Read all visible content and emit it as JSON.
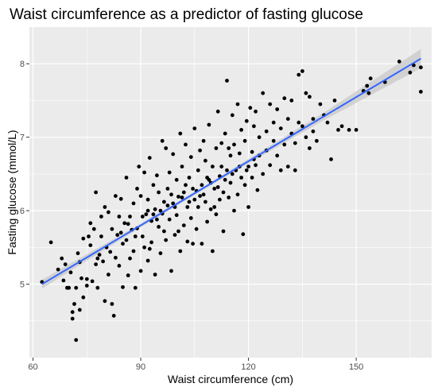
{
  "chart_data": {
    "type": "scatter",
    "title": "Waist circumference as a predictor of fasting glucose",
    "xlabel": "Waist circumference (cm)",
    "ylabel": "Fasting glucose (mmol/L)",
    "xlim": [
      59,
      171
    ],
    "ylim": [
      4.0,
      8.5
    ],
    "xticks": [
      60,
      90,
      120,
      150
    ],
    "yticks": [
      5,
      6,
      7,
      8
    ],
    "xtick_labels": [
      "60",
      "90",
      "120",
      "150"
    ],
    "ytick_labels": [
      "5",
      "6",
      "7",
      "8"
    ],
    "grid": true,
    "legend": "none",
    "background_color": "#ebebeb",
    "point_color": "#000000",
    "trend_color": "#3366ff",
    "band_color": "#cccccc",
    "trend": {
      "x": [
        62.5,
        168
      ],
      "y": [
        5.0,
        8.07
      ]
    },
    "band_half_width": {
      "x": [
        62.5,
        90,
        110,
        140,
        168
      ],
      "y": [
        0.06,
        0.025,
        0.022,
        0.05,
        0.13
      ]
    },
    "points": [
      [
        62.5,
        5.03
      ],
      [
        65.0,
        5.57
      ],
      [
        67.0,
        5.2
      ],
      [
        68.0,
        5.35
      ],
      [
        68.5,
        5.05
      ],
      [
        69.0,
        5.27
      ],
      [
        69.5,
        4.95
      ],
      [
        70.0,
        4.95
      ],
      [
        70.5,
        5.16
      ],
      [
        71.0,
        4.62
      ],
      [
        71.0,
        4.53
      ],
      [
        71.5,
        4.73
      ],
      [
        72.0,
        4.24
      ],
      [
        72.0,
        4.95
      ],
      [
        72.5,
        5.42
      ],
      [
        73.0,
        5.3
      ],
      [
        73.0,
        4.65
      ],
      [
        73.5,
        5.08
      ],
      [
        74.0,
        4.82
      ],
      [
        74.0,
        5.62
      ],
      [
        75.0,
        5.07
      ],
      [
        75.0,
        4.98
      ],
      [
        75.5,
        5.65
      ],
      [
        76.0,
        5.83
      ],
      [
        76.0,
        5.53
      ],
      [
        76.5,
        5.04
      ],
      [
        77.0,
        5.75
      ],
      [
        77.5,
        6.25
      ],
      [
        77.5,
        5.27
      ],
      [
        78.0,
        4.95
      ],
      [
        78.0,
        5.35
      ],
      [
        78.5,
        5.4
      ],
      [
        79.0,
        5.92
      ],
      [
        79.0,
        5.65
      ],
      [
        79.5,
        5.31
      ],
      [
        80.0,
        4.77
      ],
      [
        80.0,
        6.05
      ],
      [
        80.5,
        5.5
      ],
      [
        81.0,
        5.13
      ],
      [
        81.0,
        5.98
      ],
      [
        81.5,
        5.44
      ],
      [
        82.0,
        5.75
      ],
      [
        82.0,
        4.73
      ],
      [
        82.5,
        4.57
      ],
      [
        83.0,
        5.36
      ],
      [
        83.0,
        6.2
      ],
      [
        83.5,
        5.67
      ],
      [
        84.0,
        5.92
      ],
      [
        84.0,
        5.25
      ],
      [
        84.5,
        6.16
      ],
      [
        85.0,
        5.55
      ],
      [
        85.0,
        4.96
      ],
      [
        85.5,
        5.83
      ],
      [
        86.0,
        5.6
      ],
      [
        86.0,
        6.45
      ],
      [
        86.5,
        5.12
      ],
      [
        87.0,
        5.92
      ],
      [
        87.0,
        5.35
      ],
      [
        87.5,
        5.74
      ],
      [
        88.0,
        6.1
      ],
      [
        88.0,
        5.45
      ],
      [
        88.5,
        4.95
      ],
      [
        89.0,
        6.3
      ],
      [
        89.0,
        5.76
      ],
      [
        89.5,
        6.6
      ],
      [
        90.0,
        6.2
      ],
      [
        90.0,
        5.18
      ],
      [
        90.5,
        5.65
      ],
      [
        91.0,
        6.52
      ],
      [
        91.0,
        5.5
      ],
      [
        91.5,
        5.95
      ],
      [
        92.0,
        5.32
      ],
      [
        92.0,
        6.15
      ],
      [
        92.5,
        6.72
      ],
      [
        93.0,
        5.86
      ],
      [
        93.0,
        5.57
      ],
      [
        93.5,
        6.35
      ],
      [
        94.0,
        6.02
      ],
      [
        94.0,
        5.13
      ],
      [
        94.5,
        6.48
      ],
      [
        95.0,
        5.78
      ],
      [
        95.0,
        6.25
      ],
      [
        95.5,
        5.42
      ],
      [
        96.0,
        6.95
      ],
      [
        96.0,
        5.96
      ],
      [
        96.5,
        6.12
      ],
      [
        97.0,
        6.85
      ],
      [
        97.0,
        5.6
      ],
      [
        97.5,
        6.3
      ],
      [
        98.0,
        5.88
      ],
      [
        98.0,
        6.52
      ],
      [
        98.5,
        5.18
      ],
      [
        99.0,
        6.1
      ],
      [
        99.0,
        6.77
      ],
      [
        99.5,
        5.67
      ],
      [
        100.0,
        6.42
      ],
      [
        100.0,
        5.94
      ],
      [
        100.5,
        6.19
      ],
      [
        101.0,
        7.05
      ],
      [
        101.0,
        5.45
      ],
      [
        101.5,
        6.6
      ],
      [
        102.0,
        5.8
      ],
      [
        102.0,
        6.25
      ],
      [
        102.5,
        6.9
      ],
      [
        103.0,
        6.05
      ],
      [
        103.0,
        5.58
      ],
      [
        103.5,
        6.45
      ],
      [
        104.0,
        6.73
      ],
      [
        104.0,
        5.9
      ],
      [
        104.5,
        6.3
      ],
      [
        105.0,
        6.15
      ],
      [
        105.0,
        7.12
      ],
      [
        105.5,
        5.75
      ],
      [
        106.0,
        6.55
      ],
      [
        106.0,
        6.05
      ],
      [
        106.5,
        6.82
      ],
      [
        107.0,
        6.35
      ],
      [
        107.0,
        5.55
      ],
      [
        107.5,
        6.95
      ],
      [
        108.0,
        6.12
      ],
      [
        108.0,
        6.68
      ],
      [
        108.5,
        5.85
      ],
      [
        109.0,
        6.42
      ],
      [
        109.0,
        7.17
      ],
      [
        109.5,
        6.02
      ],
      [
        110.0,
        6.6
      ],
      [
        110.0,
        5.45
      ],
      [
        110.5,
        6.3
      ],
      [
        111.0,
        6.85
      ],
      [
        111.0,
        5.95
      ],
      [
        111.5,
        7.35
      ],
      [
        112.0,
        6.47
      ],
      [
        112.0,
        6.15
      ],
      [
        112.5,
        6.92
      ],
      [
        113.0,
        6.25
      ],
      [
        113.0,
        5.72
      ],
      [
        113.5,
        7.05
      ],
      [
        114.0,
        6.55
      ],
      [
        114.0,
        7.77
      ],
      [
        114.5,
        6.18
      ],
      [
        115.0,
        6.75
      ],
      [
        115.0,
        6.38
      ],
      [
        115.5,
        7.3
      ],
      [
        116.0,
        6.0
      ],
      [
        116.0,
        6.9
      ],
      [
        116.5,
        6.55
      ],
      [
        117.0,
        7.45
      ],
      [
        117.0,
        6.22
      ],
      [
        117.5,
        6.78
      ],
      [
        118.0,
        7.1
      ],
      [
        118.0,
        6.45
      ],
      [
        118.5,
        5.68
      ],
      [
        119.0,
        6.95
      ],
      [
        119.0,
        6.35
      ],
      [
        119.5,
        7.22
      ],
      [
        120.0,
        6.6
      ],
      [
        120.0,
        6.05
      ],
      [
        120.5,
        7.4
      ],
      [
        121.0,
        6.8
      ],
      [
        121.0,
        6.45
      ],
      [
        121.5,
        7.15
      ],
      [
        122.0,
        6.62
      ],
      [
        122.0,
        7.35
      ],
      [
        122.5,
        6.28
      ],
      [
        123.0,
        7.0
      ],
      [
        123.0,
        6.75
      ],
      [
        124.0,
        7.6
      ],
      [
        124.0,
        6.5
      ],
      [
        125.0,
        7.08
      ],
      [
        125.0,
        6.82
      ],
      [
        126.0,
        7.45
      ],
      [
        126.0,
        6.62
      ],
      [
        127.0,
        7.2
      ],
      [
        127.0,
        6.95
      ],
      [
        128.0,
        6.75
      ],
      [
        128.0,
        7.38
      ],
      [
        129.0,
        6.55
      ],
      [
        129.0,
        7.12
      ],
      [
        130.0,
        7.53
      ],
      [
        130.0,
        6.9
      ],
      [
        131.0,
        7.25
      ],
      [
        131.0,
        6.6
      ],
      [
        132.0,
        7.5
      ],
      [
        132.0,
        7.05
      ],
      [
        133.0,
        6.92
      ],
      [
        133.0,
        6.55
      ],
      [
        134.0,
        7.85
      ],
      [
        134.0,
        7.2
      ],
      [
        135.0,
        7.9
      ],
      [
        135.0,
        7.15
      ],
      [
        136.0,
        7.6
      ],
      [
        136.0,
        7.0
      ],
      [
        137.0,
        7.55
      ],
      [
        137.0,
        6.85
      ],
      [
        138.0,
        7.25
      ],
      [
        138.0,
        7.08
      ],
      [
        139.0,
        6.95
      ],
      [
        140.0,
        7.45
      ],
      [
        141.0,
        7.3
      ],
      [
        142.0,
        7.2
      ],
      [
        143.0,
        6.7
      ],
      [
        144.0,
        7.5
      ],
      [
        145.0,
        7.1
      ],
      [
        146.0,
        7.15
      ],
      [
        148.0,
        7.1
      ],
      [
        150.0,
        7.1
      ],
      [
        152.0,
        7.63
      ],
      [
        153.0,
        7.7
      ],
      [
        153.5,
        7.6
      ],
      [
        154.0,
        7.8
      ],
      [
        158.0,
        7.75
      ],
      [
        162.0,
        8.03
      ],
      [
        165.0,
        7.88
      ],
      [
        166.0,
        7.98
      ],
      [
        168.0,
        7.95
      ],
      [
        168.0,
        7.62
      ],
      [
        92.0,
        6.0
      ],
      [
        93.5,
        5.95
      ],
      [
        95.5,
        6.0
      ],
      [
        97.5,
        6.07
      ],
      [
        99.5,
        6.05
      ],
      [
        101.5,
        6.18
      ],
      [
        103.5,
        6.12
      ],
      [
        105.5,
        6.27
      ],
      [
        107.5,
        6.22
      ],
      [
        109.5,
        6.38
      ],
      [
        111.5,
        6.32
      ],
      [
        113.5,
        6.42
      ],
      [
        115.5,
        6.5
      ],
      [
        117.5,
        6.6
      ],
      [
        119.5,
        6.55
      ],
      [
        121.5,
        6.7
      ],
      [
        84.5,
        5.7
      ],
      [
        86.5,
        5.82
      ],
      [
        88.5,
        5.65
      ],
      [
        90.5,
        5.92
      ],
      [
        92.5,
        5.48
      ],
      [
        94.5,
        5.88
      ],
      [
        96.5,
        5.72
      ],
      [
        98.5,
        6.22
      ],
      [
        100.5,
        5.72
      ],
      [
        102.5,
        6.35
      ],
      [
        104.5,
        5.55
      ],
      [
        106.5,
        6.2
      ],
      [
        108.5,
        6.45
      ],
      [
        110.5,
        6.05
      ],
      [
        112.5,
        6.6
      ],
      [
        114.5,
        6.85
      ]
    ]
  }
}
